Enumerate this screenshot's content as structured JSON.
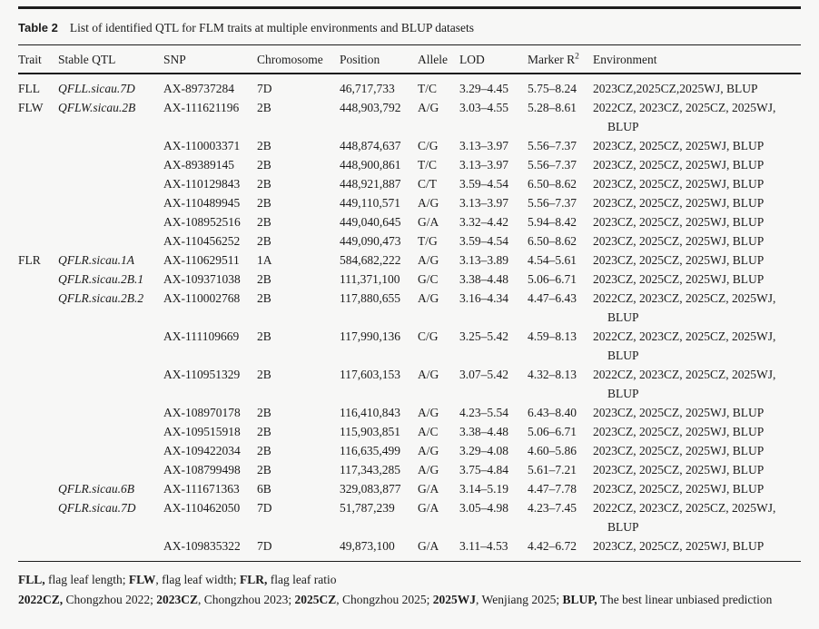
{
  "page": {
    "background_color": "#f7f7f6",
    "text_color": "#1c1c1c"
  },
  "table": {
    "label": "Table 2",
    "caption": "List of identified QTL for FLM traits at multiple environments and BLUP datasets",
    "columns": [
      {
        "label": "Trait"
      },
      {
        "label": "Stable QTL"
      },
      {
        "label": "SNP"
      },
      {
        "label": "Chromosome"
      },
      {
        "label": "Position"
      },
      {
        "label": "Allele"
      },
      {
        "label": "LOD"
      },
      {
        "label": "Marker R",
        "sup": "2"
      },
      {
        "label": "Environment"
      }
    ],
    "rows": [
      {
        "trait": "FLL",
        "qtl": "QFLL.sicau.7D",
        "snp": "AX-89737284",
        "chr": "7D",
        "pos": "46,717,733",
        "allele": "T/C",
        "lod": "3.29–4.45",
        "r2": "5.75–8.24",
        "env": "2023CZ,2025CZ,2025WJ, BLUP"
      },
      {
        "trait": "FLW",
        "qtl": "QFLW.sicau.2B",
        "snp": "AX-111621196",
        "chr": "2B",
        "pos": "448,903,792",
        "allele": "A/G",
        "lod": "3.03–4.55",
        "r2": "5.28–8.61",
        "env": "2022CZ, 2023CZ, 2025CZ, 2025WJ, BLUP"
      },
      {
        "trait": "",
        "qtl": "",
        "snp": "AX-110003371",
        "chr": "2B",
        "pos": "448,874,637",
        "allele": "C/G",
        "lod": "3.13–3.97",
        "r2": "5.56–7.37",
        "env": "2023CZ, 2025CZ, 2025WJ, BLUP"
      },
      {
        "trait": "",
        "qtl": "",
        "snp": "AX-89389145",
        "chr": "2B",
        "pos": "448,900,861",
        "allele": "T/C",
        "lod": "3.13–3.97",
        "r2": "5.56–7.37",
        "env": "2023CZ, 2025CZ, 2025WJ, BLUP"
      },
      {
        "trait": "",
        "qtl": "",
        "snp": "AX-110129843",
        "chr": "2B",
        "pos": "448,921,887",
        "allele": "C/T",
        "lod": "3.59–4.54",
        "r2": "6.50–8.62",
        "env": "2023CZ, 2025CZ, 2025WJ, BLUP"
      },
      {
        "trait": "",
        "qtl": "",
        "snp": "AX-110489945",
        "chr": "2B",
        "pos": "449,110,571",
        "allele": "A/G",
        "lod": "3.13–3.97",
        "r2": "5.56–7.37",
        "env": "2023CZ, 2025CZ, 2025WJ, BLUP"
      },
      {
        "trait": "",
        "qtl": "",
        "snp": "AX-108952516",
        "chr": "2B",
        "pos": "449,040,645",
        "allele": "G/A",
        "lod": "3.32–4.42",
        "r2": "5.94–8.42",
        "env": "2023CZ, 2025CZ, 2025WJ, BLUP"
      },
      {
        "trait": "",
        "qtl": "",
        "snp": "AX-110456252",
        "chr": "2B",
        "pos": "449,090,473",
        "allele": "T/G",
        "lod": "3.59–4.54",
        "r2": "6.50–8.62",
        "env": "2023CZ, 2025CZ, 2025WJ, BLUP"
      },
      {
        "trait": "FLR",
        "qtl": "QFLR.sicau.1A",
        "snp": "AX-110629511",
        "chr": "1A",
        "pos": "584,682,222",
        "allele": "A/G",
        "lod": "3.13–3.89",
        "r2": "4.54–5.61",
        "env": "2023CZ, 2025CZ, 2025WJ, BLUP"
      },
      {
        "trait": "",
        "qtl": "QFLR.sicau.2B.1",
        "snp": "AX-109371038",
        "chr": "2B",
        "pos": "111,371,100",
        "allele": "G/C",
        "lod": "3.38–4.48",
        "r2": "5.06–6.71",
        "env": "2023CZ, 2025CZ, 2025WJ, BLUP"
      },
      {
        "trait": "",
        "qtl": "QFLR.sicau.2B.2",
        "snp": "AX-110002768",
        "chr": "2B",
        "pos": "117,880,655",
        "allele": "A/G",
        "lod": "3.16–4.34",
        "r2": "4.47–6.43",
        "env": "2022CZ, 2023CZ, 2025CZ, 2025WJ, BLUP"
      },
      {
        "trait": "",
        "qtl": "",
        "snp": "AX-111109669",
        "chr": "2B",
        "pos": "117,990,136",
        "allele": "C/G",
        "lod": "3.25–5.42",
        "r2": "4.59–8.13",
        "env": "2022CZ, 2023CZ, 2025CZ, 2025WJ, BLUP"
      },
      {
        "trait": "",
        "qtl": "",
        "snp": "AX-110951329",
        "chr": "2B",
        "pos": "117,603,153",
        "allele": "A/G",
        "lod": "3.07–5.42",
        "r2": "4.32–8.13",
        "env": "2022CZ, 2023CZ, 2025CZ, 2025WJ, BLUP"
      },
      {
        "trait": "",
        "qtl": "",
        "snp": "AX-108970178",
        "chr": "2B",
        "pos": "116,410,843",
        "allele": "A/G",
        "lod": "4.23–5.54",
        "r2": "6.43–8.40",
        "env": "2023CZ, 2025CZ, 2025WJ, BLUP"
      },
      {
        "trait": "",
        "qtl": "",
        "snp": "AX-109515918",
        "chr": "2B",
        "pos": "115,903,851",
        "allele": "A/C",
        "lod": "3.38–4.48",
        "r2": "5.06–6.71",
        "env": "2023CZ, 2025CZ, 2025WJ, BLUP"
      },
      {
        "trait": "",
        "qtl": "",
        "snp": "AX-109422034",
        "chr": "2B",
        "pos": "116,635,499",
        "allele": "A/G",
        "lod": "3.29–4.08",
        "r2": "4.60–5.86",
        "env": "2023CZ, 2025CZ, 2025WJ, BLUP"
      },
      {
        "trait": "",
        "qtl": "",
        "snp": "AX-108799498",
        "chr": "2B",
        "pos": "117,343,285",
        "allele": "A/G",
        "lod": "3.75–4.84",
        "r2": "5.61–7.21",
        "env": "2023CZ, 2025CZ, 2025WJ, BLUP"
      },
      {
        "trait": "",
        "qtl": "QFLR.sicau.6B",
        "snp": "AX-111671363",
        "chr": "6B",
        "pos": "329,083,877",
        "allele": "G/A",
        "lod": "3.14–5.19",
        "r2": "4.47–7.78",
        "env": "2023CZ, 2025CZ, 2025WJ, BLUP"
      },
      {
        "trait": "",
        "qtl": "QFLR.sicau.7D",
        "snp": "AX-110462050",
        "chr": "7D",
        "pos": "51,787,239",
        "allele": "G/A",
        "lod": "3.05–4.98",
        "r2": "4.23–7.45",
        "env": "2022CZ, 2023CZ, 2025CZ, 2025WJ, BLUP"
      },
      {
        "trait": "",
        "qtl": "",
        "snp": "AX-109835322",
        "chr": "7D",
        "pos": "49,873,100",
        "allele": "G/A",
        "lod": "3.11–4.53",
        "r2": "4.42–6.72",
        "env": "2023CZ, 2025CZ, 2025WJ, BLUP"
      }
    ],
    "footnotes": [
      [
        {
          "term": "FLL,",
          "def": " flag leaf length; "
        },
        {
          "term": "FLW",
          "def": ", flag leaf width; "
        },
        {
          "term": "FLR,",
          "def": " flag leaf ratio"
        }
      ],
      [
        {
          "term": "2022CZ,",
          "def": " Chongzhou 2022; "
        },
        {
          "term": "2023CZ",
          "def": ", Chongzhou 2023; "
        },
        {
          "term": "2025CZ",
          "def": ", Chongzhou 2025; "
        },
        {
          "term": "2025WJ",
          "def": ", Wenjiang 2025; "
        },
        {
          "term": "BLUP,",
          "def": " The best linear unbiased prediction"
        }
      ]
    ]
  }
}
